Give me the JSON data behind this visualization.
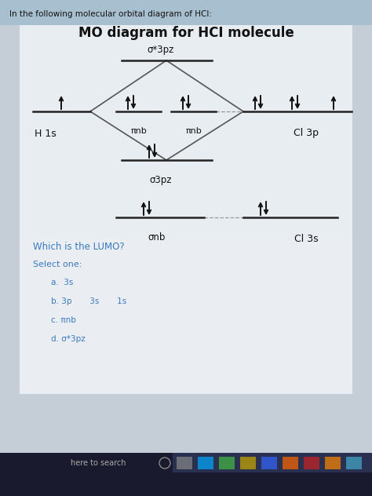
{
  "title": "MO diagram for HCI molecule",
  "header": "In the following molecular orbital diagram of HCl:",
  "question": "Which is the LUMO?",
  "select_one": "Select one:",
  "options": [
    "a.  3s",
    "b. 3p       3s       1s",
    "c. πnb",
    "d. σ*3pz"
  ],
  "H1s_label": "H 1s",
  "Cl3p_label": "Cl 3p",
  "Cl3s_label": "Cl 3s",
  "sigma_star_label": "σ*3pz",
  "pi_nb_label": "πnb",
  "sigma_3pz_label": "σ3pz",
  "sigma_nb_label": "σnb",
  "bg_screen": "#c5cdd6",
  "bg_header": "#a8bfcf",
  "bg_content": "#d5dfe8",
  "bg_bottom": "#dde4ea",
  "bg_taskbar": "#1a1a2e",
  "text_dark": "#111111",
  "text_blue": "#3a7abf"
}
